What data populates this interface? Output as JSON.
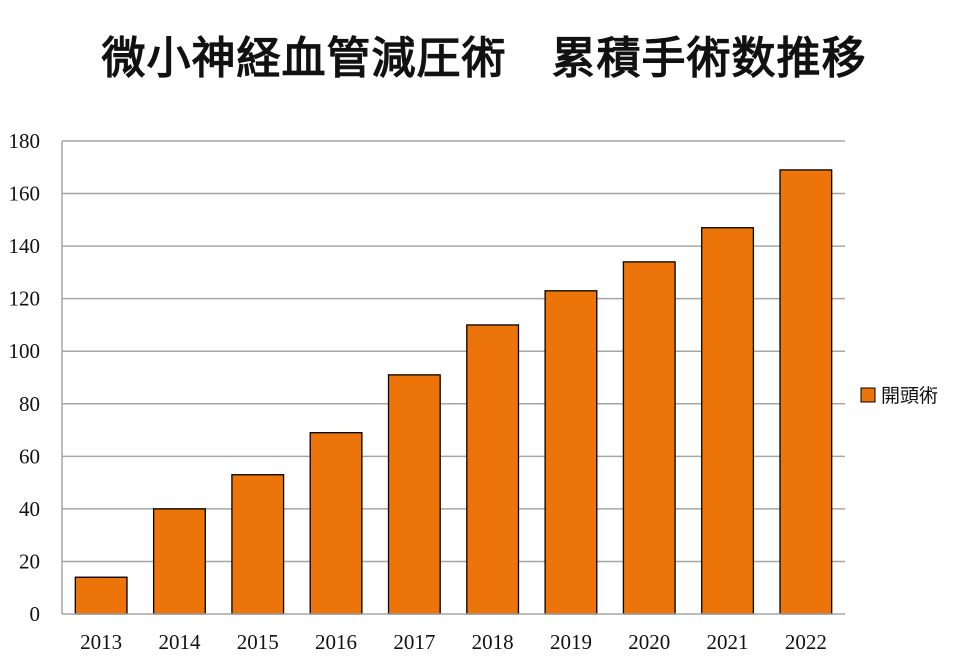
{
  "colors": {
    "bar": "#ED7409",
    "bar_stroke": "#000000",
    "grid": "#A6A6A6",
    "axis": "#A6A6A6",
    "text": "#111111"
  },
  "chart_data": {
    "type": "bar",
    "title": "微小神経血管減圧術　累積手術数推移",
    "categories": [
      "2013",
      "2014",
      "2015",
      "2016",
      "2017",
      "2018",
      "2019",
      "2020",
      "2021",
      "2022"
    ],
    "series": [
      {
        "name": "開頭術",
        "values": [
          14,
          40,
          53,
          69,
          91,
          110,
          123,
          134,
          147,
          169
        ]
      }
    ],
    "xlabel": "",
    "ylabel": "",
    "ylim": [
      0,
      180
    ],
    "yticks": [
      0,
      20,
      40,
      60,
      80,
      100,
      120,
      140,
      160,
      180
    ],
    "grid": true,
    "legend_position": "right"
  }
}
